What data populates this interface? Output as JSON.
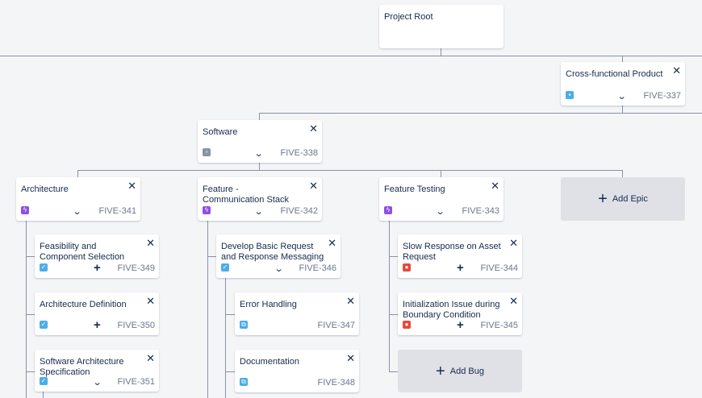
{
  "root": {
    "title": "Project Root"
  },
  "product": {
    "title": "Cross-functional Product",
    "key": "FIVE-337"
  },
  "software": {
    "title": "Software",
    "key": "FIVE-338"
  },
  "epics": [
    {
      "title": "Architecture",
      "key": "FIVE-341"
    },
    {
      "title": "Feature - Communication Stack",
      "key": "FIVE-342"
    },
    {
      "title": "Feature Testing",
      "key": "FIVE-343"
    }
  ],
  "add_epic": "Add Epic",
  "add_bug": "Add Bug",
  "arch_children": [
    {
      "title": "Feasibility and Component Selection",
      "key": "FIVE-349"
    },
    {
      "title": "Architecture Definition",
      "key": "FIVE-350"
    },
    {
      "title": "Software Architecture Specification",
      "key": "FIVE-351"
    }
  ],
  "comm_story": {
    "title": "Develop Basic Request and Response Messaging",
    "key": "FIVE-346"
  },
  "subtasks": [
    {
      "title": "Error Handling",
      "key": "FIVE-347"
    },
    {
      "title": "Documentation",
      "key": "FIVE-348"
    }
  ],
  "bugs": [
    {
      "title": "Slow Response on Asset Request",
      "key": "FIVE-344"
    },
    {
      "title": "Initialization Issue during Boundary Condition",
      "key": "FIVE-345"
    }
  ],
  "icons": {
    "close": "close-icon",
    "chevron": "chevron-down-icon",
    "plus": "plus-icon",
    "epic": "epic-icon",
    "story": "story-icon",
    "bug": "bug-icon",
    "subtask": "subtask-icon",
    "component": "component-icon",
    "product": "product-icon"
  },
  "colors": {
    "epic": "#904ee2",
    "story": "#4bade8",
    "bug": "#e5493a",
    "subtask": "#4bade8",
    "component": "#8993a4",
    "product": "#4bade8"
  }
}
